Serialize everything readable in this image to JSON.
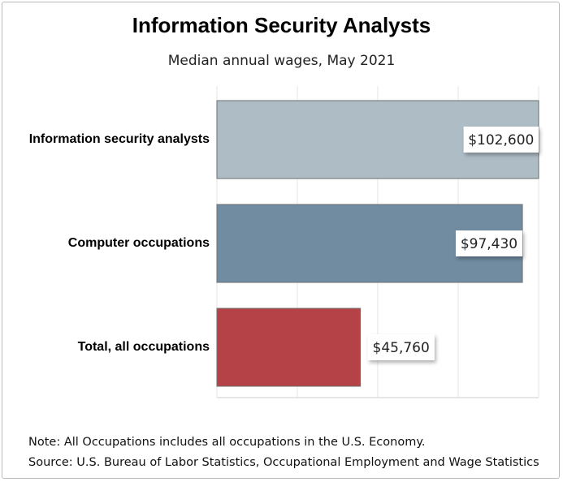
{
  "chart_data": {
    "type": "bar",
    "orientation": "horizontal",
    "title": "Information Security Analysts",
    "subtitle": "Median annual wages, May 2021",
    "categories": [
      "Information security analysts",
      "Computer occupations",
      "Total, all occupations"
    ],
    "values": [
      102600,
      97430,
      45760
    ],
    "value_labels": [
      "$102,600",
      "$97,430",
      "$45,760"
    ],
    "colors": [
      "#aebcc6",
      "#718ba1",
      "#b44247"
    ],
    "xlim": [
      0,
      102600
    ],
    "grid": true,
    "xlabel": "",
    "ylabel": ""
  },
  "notes": {
    "note": "Note: All Occupations includes all occupations in the U.S. Economy.",
    "source": "Source: U.S. Bureau of Labor Statistics, Occupational Employment and Wage Statistics"
  }
}
